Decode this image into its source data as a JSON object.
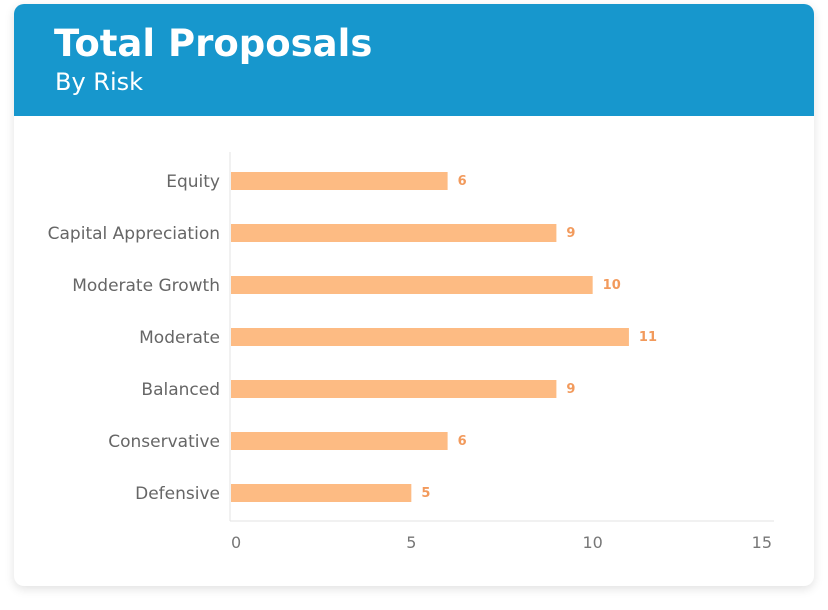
{
  "header": {
    "title": "Total Proposals",
    "subtitle": "By Risk"
  },
  "colors": {
    "header_bg": "#1797cd",
    "bar": "#fdbb83",
    "value_label": "#f29a5c",
    "axis": "#e3e3e3"
  },
  "chart_data": {
    "type": "bar",
    "orientation": "horizontal",
    "categories": [
      "Equity",
      "Capital Appreciation",
      "Moderate Growth",
      "Moderate",
      "Balanced",
      "Conservative",
      "Defensive"
    ],
    "values": [
      6,
      9,
      10,
      11,
      9,
      6,
      5
    ],
    "xlim": [
      0,
      15
    ],
    "xticks": [
      0,
      5,
      10,
      15
    ],
    "grid": false,
    "data_labels": true
  }
}
